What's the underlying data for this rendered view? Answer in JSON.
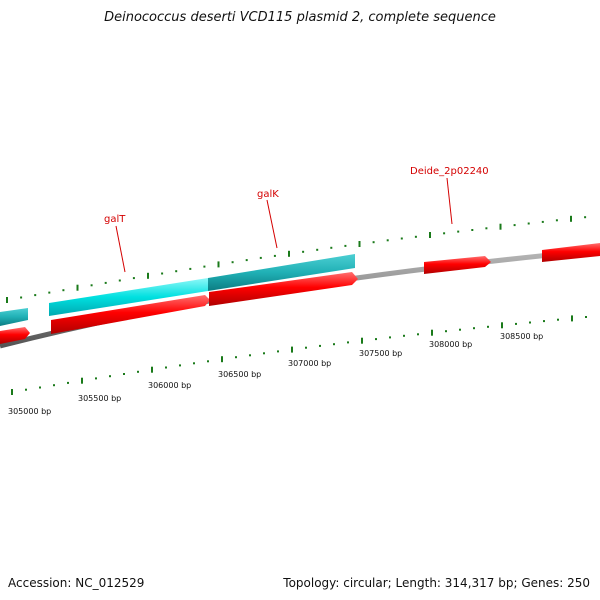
{
  "title": "Deinococcus deserti VCD115 plasmid 2, complete sequence",
  "footer": {
    "accession": "Accession: NC_012529",
    "summary": "Topology: circular; Length: 314,317 bp; Genes: 250"
  },
  "gene_labels": [
    "galT",
    "galK",
    "Deide_2p02240"
  ],
  "bp_labels": [
    "305000 bp",
    "305500 bp",
    "306000 bp",
    "306500 bp",
    "307000 bp",
    "307500 bp",
    "308000 bp",
    "308500 bp"
  ],
  "colors": {
    "plus_strand": "#ff0000",
    "cds_cyan": "#00dddd",
    "cds_teal": "#1aa9ad",
    "backbone": "#888888",
    "ticks": "#1a7a1a",
    "label_red": "#d40000"
  }
}
